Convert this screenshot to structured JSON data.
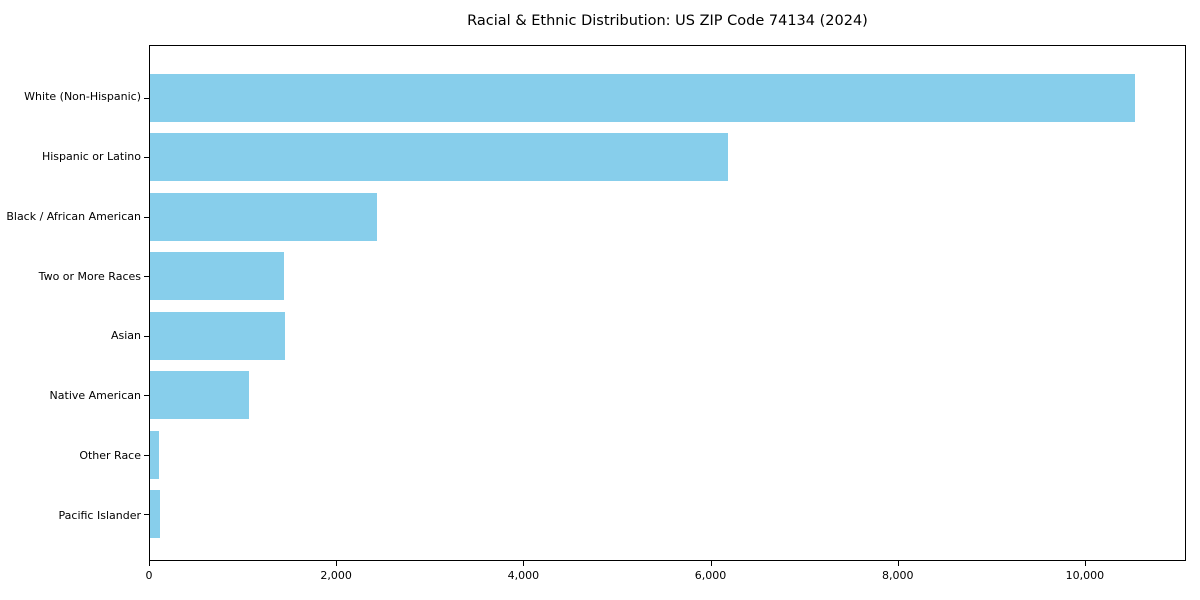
{
  "chart_data": {
    "type": "bar",
    "orientation": "horizontal",
    "title": "Racial & Ethnic Distribution: US ZIP Code 74134 (2024)",
    "categories": [
      "White (Non-Hispanic)",
      "Hispanic or Latino",
      "Black / African American",
      "Two or More Races",
      "Asian",
      "Native American",
      "Other Race",
      "Pacific Islander"
    ],
    "values": [
      10550,
      6190,
      2430,
      1430,
      1440,
      1060,
      100,
      110
    ],
    "xlabel": "",
    "ylabel": "",
    "xlim": [
      0,
      11080
    ],
    "xticks": [
      0,
      2000,
      4000,
      6000,
      8000,
      10000
    ],
    "xtick_labels": [
      "0",
      "2,000",
      "4,000",
      "6,000",
      "8,000",
      "10,000"
    ],
    "bar_color": "#87CEEB",
    "axis_color": "#000000",
    "background_color": "#FFFFFF",
    "grid": false,
    "legend": null
  }
}
